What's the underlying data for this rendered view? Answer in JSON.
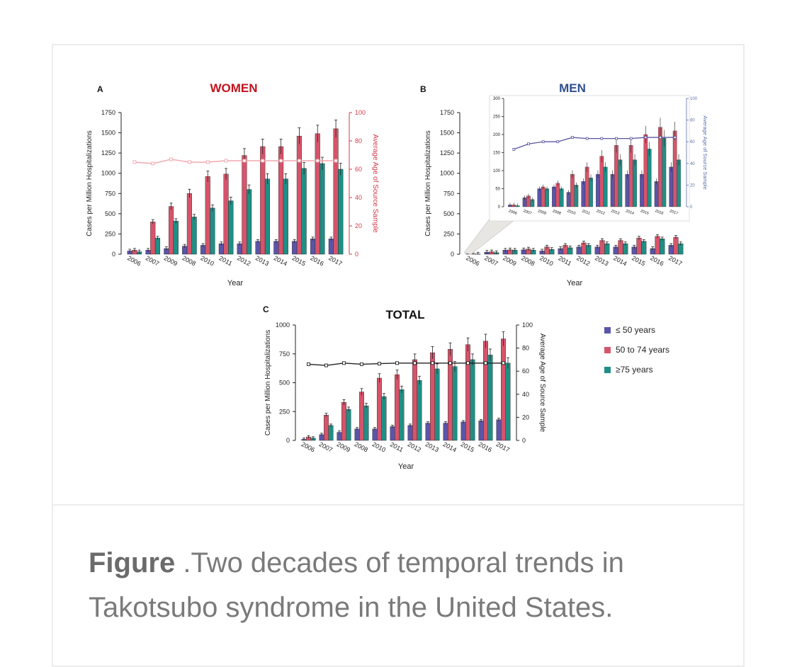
{
  "figure": {
    "caption_label": "Figure",
    "caption_text": " .Two decades of temporal trends in Takotsubo syndrome in the United States."
  },
  "colors": {
    "le50": "#5b55a8",
    "mid": "#d6546a",
    "ge75": "#1f8f86",
    "women_title": "#c3131c",
    "men_title": "#2f4f8f",
    "women_axis": "#d63a48",
    "men_axis": "#5a6fa6",
    "women_age_line": "#f2a6ad",
    "men_age_line": "#5a55a0",
    "total_age_line": "#222222"
  },
  "legend": {
    "items": [
      {
        "label": "≤ 50 years",
        "color": "#5b55a8"
      },
      {
        "label": "50 to 74 years",
        "color": "#d6546a"
      },
      {
        "label": "≥75 years",
        "color": "#1f8f86"
      }
    ]
  },
  "chart_data": [
    {
      "type": "bar",
      "panel": "A",
      "title": "WOMEN",
      "xlabel": "Year",
      "ylabel": "Cases per Million Hospitalizations",
      "y2label": "Average Age of Source Sample",
      "ylim": [
        0,
        1750
      ],
      "yticks": [
        0,
        250,
        500,
        750,
        1000,
        1250,
        1500,
        1750
      ],
      "y2lim": [
        0,
        100
      ],
      "y2ticks": [
        0,
        20,
        40,
        60,
        80,
        100
      ],
      "categories": [
        "2006",
        "2007",
        "2009",
        "2008",
        "2010",
        "2011",
        "2012",
        "2013",
        "2014",
        "2015",
        "2016",
        "2017"
      ],
      "series": [
        {
          "name": "≤ 50 years",
          "values": [
            40,
            50,
            70,
            100,
            110,
            130,
            130,
            160,
            160,
            160,
            190,
            190
          ]
        },
        {
          "name": "50 to 74 years",
          "values": [
            50,
            400,
            590,
            750,
            960,
            990,
            1220,
            1330,
            1330,
            1460,
            1490,
            1550
          ]
        },
        {
          "name": "≥75 years",
          "values": [
            30,
            200,
            410,
            460,
            570,
            660,
            800,
            930,
            930,
            1060,
            1120,
            1050
          ]
        }
      ],
      "age_line": [
        65,
        64,
        67,
        65,
        65,
        66,
        66,
        66,
        66,
        66,
        66,
        66
      ]
    },
    {
      "type": "bar",
      "panel": "B",
      "title": "MEN",
      "xlabel": "Year",
      "ylabel": "Cases per Million Hospitalizations",
      "ylim": [
        0,
        1750
      ],
      "yticks": [
        0,
        250,
        500,
        750,
        1000,
        1250,
        1500,
        1750
      ],
      "categories": [
        "2006",
        "2007",
        "2009",
        "2008",
        "2010",
        "2011",
        "2012",
        "2013",
        "2014",
        "2015",
        "2016",
        "2017"
      ],
      "series": [
        {
          "name": "≤ 50 years",
          "values": [
            5,
            25,
            50,
            55,
            40,
            70,
            90,
            90,
            90,
            90,
            70,
            110
          ]
        },
        {
          "name": "50 to 74 years",
          "values": [
            5,
            30,
            55,
            65,
            90,
            110,
            140,
            170,
            170,
            200,
            220,
            210
          ]
        },
        {
          "name": "≥75 years",
          "values": [
            3,
            20,
            50,
            50,
            60,
            80,
            110,
            130,
            130,
            160,
            190,
            130
          ]
        }
      ],
      "inset": {
        "y2label": "Average Age of Source Sample",
        "ylim": [
          0,
          300
        ],
        "yticks": [
          0,
          50,
          100,
          150,
          200,
          250,
          300
        ],
        "y2lim": [
          0,
          100
        ],
        "y2ticks": [
          0,
          20,
          40,
          60,
          80,
          100
        ],
        "age_line": [
          53,
          58,
          60,
          60,
          64,
          63,
          63,
          63,
          63,
          64,
          64,
          64
        ]
      }
    },
    {
      "type": "bar",
      "panel": "C",
      "title": "TOTAL",
      "xlabel": "Year",
      "ylabel": "Cases per Million Hospitalizations",
      "y2label": "Average Age of Source Sample",
      "ylim": [
        0,
        1000
      ],
      "yticks": [
        0,
        250,
        500,
        750,
        1000
      ],
      "y2lim": [
        0,
        100
      ],
      "y2ticks": [
        0,
        20,
        40,
        60,
        80,
        100
      ],
      "categories": [
        "2006",
        "2007",
        "2009",
        "2008",
        "2010",
        "2011",
        "2012",
        "2013",
        "2014",
        "2015",
        "2016",
        "2017"
      ],
      "series": [
        {
          "name": "≤ 50 years",
          "values": [
            10,
            50,
            70,
            100,
            100,
            120,
            130,
            150,
            150,
            160,
            170,
            180
          ]
        },
        {
          "name": "50 to 74 years",
          "values": [
            30,
            220,
            330,
            420,
            540,
            570,
            700,
            760,
            790,
            830,
            860,
            880
          ]
        },
        {
          "name": "≥75 years",
          "values": [
            20,
            130,
            270,
            300,
            380,
            440,
            520,
            620,
            640,
            700,
            740,
            670
          ]
        }
      ],
      "age_line": [
        66,
        65,
        67,
        66,
        66.5,
        67,
        67,
        67,
        67,
        67,
        67,
        67
      ]
    }
  ]
}
